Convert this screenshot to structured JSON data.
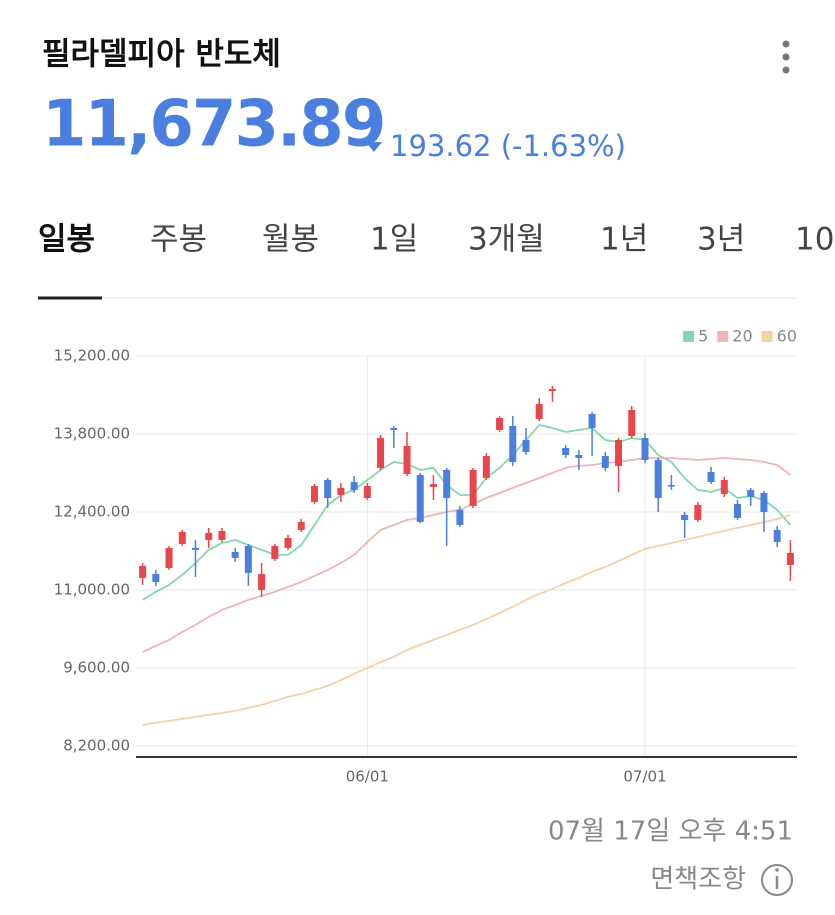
{
  "header": {
    "title": "필라델피아 반도체",
    "price": "11,673.89",
    "change": "193.62 (-1.63%)"
  },
  "tabs": [
    "일봉",
    "주봉",
    "월봉",
    "1일",
    "3개월",
    "1년",
    "3년",
    "10"
  ],
  "chart_data": {
    "type": "candlestick",
    "categories": [
      null,
      null,
      null,
      null,
      null,
      null,
      null,
      null,
      null,
      null,
      null,
      null,
      null,
      null,
      null,
      null,
      null,
      "06/01",
      null,
      null,
      null,
      null,
      null,
      null,
      null,
      null,
      null,
      null,
      null,
      null,
      null,
      null,
      null,
      null,
      null,
      null,
      null,
      null,
      "07/01",
      null,
      null,
      null,
      null,
      null,
      null,
      null,
      null,
      null,
      null,
      null
    ],
    "open": [
      11215,
      11287,
      11395,
      11825,
      11754,
      11897,
      11897,
      11682,
      11790,
      11000,
      11556,
      11754,
      12077,
      12579,
      12974,
      12705,
      12938,
      12651,
      13190,
      13908,
      13082,
      13064,
      12849,
      13154,
      12436,
      12508,
      13010,
      13872,
      13944,
      13692,
      14069,
      14572,
      13549,
      13423,
      14159,
      13405,
      13226,
      13764,
      13728,
      13333,
      12884,
      12346,
      12256,
      13118,
      12723,
      12543,
      12795,
      12741,
      12077,
      11448
    ],
    "high": [
      11484,
      11359,
      11790,
      12077,
      11897,
      12113,
      12113,
      11754,
      11825,
      11484,
      11825,
      11987,
      12274,
      12902,
      13010,
      12920,
      13046,
      12920,
      13782,
      13944,
      13836,
      13100,
      13064,
      13190,
      12508,
      13190,
      13459,
      14123,
      14123,
      13908,
      14446,
      14662,
      13602,
      13513,
      14195,
      13477,
      13728,
      14302,
      13818,
      13369,
      13064,
      12400,
      12579,
      13208,
      13028,
      12615,
      12831,
      12777,
      12149,
      11897
    ],
    "low": [
      11090,
      11072,
      11359,
      11790,
      11233,
      11754,
      11861,
      11502,
      11072,
      10874,
      11520,
      11718,
      12041,
      12543,
      12472,
      12579,
      12741,
      12615,
      13154,
      13549,
      13046,
      12202,
      12615,
      11790,
      12131,
      12472,
      12974,
      13836,
      13226,
      13423,
      14033,
      14374,
      13369,
      13154,
      13405,
      13136,
      12759,
      13728,
      13279,
      12400,
      12795,
      11933,
      12220,
      12902,
      12669,
      12256,
      12508,
      12041,
      11772,
      11161
    ],
    "close": [
      11431,
      11143,
      11754,
      12041,
      11718,
      12023,
      12059,
      11574,
      11305,
      11287,
      11790,
      11933,
      12220,
      12866,
      12651,
      12831,
      12795,
      12866,
      13728,
      13872,
      13585,
      12220,
      12902,
      12651,
      12166,
      13154,
      13405,
      14088,
      13297,
      13477,
      14338,
      14608,
      13423,
      13369,
      13908,
      13190,
      13692,
      14231,
      13333,
      12651,
      12866,
      12256,
      12525,
      12938,
      12974,
      12292,
      12669,
      12400,
      11861,
      11664
    ],
    "up_color": "#e8464a",
    "down_color": "#4a7fe0",
    "series": [
      {
        "name": "5",
        "color": "#86d6ae",
        "values": [
          10820,
          10964,
          11090,
          11269,
          11484,
          11718,
          11843,
          11897,
          11807,
          11718,
          11628,
          11628,
          11807,
          12166,
          12525,
          12705,
          12795,
          12974,
          13154,
          13297,
          13261,
          13154,
          13190,
          12884,
          12705,
          12705,
          13010,
          13190,
          13423,
          13692,
          13961,
          13908,
          13836,
          13872,
          13908,
          13692,
          13656,
          13728,
          13692,
          13423,
          13297,
          13010,
          12795,
          12759,
          12831,
          12651,
          12687,
          12615,
          12436,
          12166
        ]
      },
      {
        "name": "20",
        "color": "#f0b5b2",
        "values": [
          9887,
          9995,
          10102,
          10246,
          10371,
          10515,
          10641,
          10730,
          10820,
          10892,
          10964,
          11054,
          11143,
          11251,
          11359,
          11484,
          11628,
          11861,
          12077,
          12166,
          12256,
          12292,
          12346,
          12400,
          12436,
          12543,
          12651,
          12741,
          12831,
          12920,
          13010,
          13100,
          13190,
          13226,
          13243,
          13279,
          13297,
          13333,
          13369,
          13369,
          13369,
          13351,
          13333,
          13351,
          13369,
          13351,
          13333,
          13297,
          13243,
          13064
        ]
      },
      {
        "name": "60",
        "color": "#f6d1a5",
        "values": [
          8576,
          8612,
          8648,
          8684,
          8720,
          8756,
          8792,
          8828,
          8882,
          8935,
          9007,
          9079,
          9133,
          9205,
          9277,
          9384,
          9492,
          9600,
          9707,
          9797,
          9923,
          10012,
          10102,
          10192,
          10282,
          10371,
          10479,
          10587,
          10695,
          10820,
          10928,
          11018,
          11125,
          11215,
          11323,
          11413,
          11520,
          11628,
          11736,
          11790,
          11843,
          11897,
          11951,
          12005,
          12059,
          12113,
          12166,
          12220,
          12274,
          12346
        ]
      }
    ],
    "ylim": [
      8000,
      15200
    ],
    "yticks": [
      {
        "value": 8200,
        "label": "8,200.00"
      },
      {
        "value": 9600,
        "label": "9,600.00"
      },
      {
        "value": 11000,
        "label": "11,000.00"
      },
      {
        "value": 12400,
        "label": "12,400.00"
      },
      {
        "value": 13800,
        "label": "13,800.00"
      },
      {
        "value": 15200,
        "label": "15,200.00"
      }
    ],
    "grid": true,
    "legend": "top-right"
  },
  "footer": {
    "timestamp": "07월 17일 오후 4:51",
    "disclaimer": "면책조항"
  }
}
